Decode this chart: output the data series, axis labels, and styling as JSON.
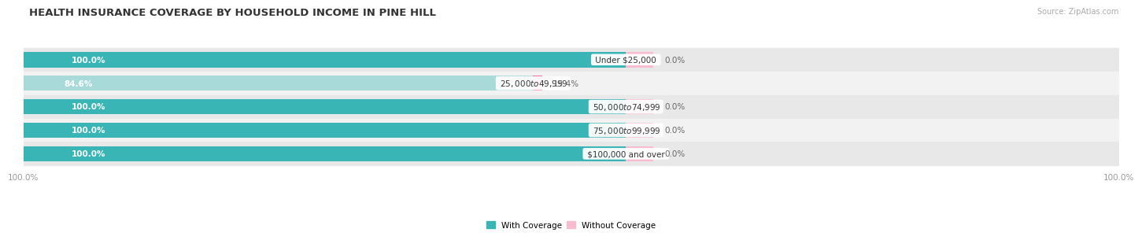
{
  "title": "HEALTH INSURANCE COVERAGE BY HOUSEHOLD INCOME IN PINE HILL",
  "source": "Source: ZipAtlas.com",
  "categories": [
    "Under $25,000",
    "$25,000 to $49,999",
    "$50,000 to $74,999",
    "$75,000 to $99,999",
    "$100,000 and over"
  ],
  "with_coverage": [
    100.0,
    84.6,
    100.0,
    100.0,
    100.0
  ],
  "without_coverage": [
    0.0,
    15.4,
    0.0,
    0.0,
    0.0
  ],
  "color_with": "#3ab5b5",
  "color_with_light": "#a8dada",
  "color_without": "#f06292",
  "color_without_light": "#f8bbd0",
  "title_fontsize": 9.5,
  "label_fontsize": 7.5,
  "tick_fontsize": 7.5,
  "legend_fontsize": 7.5,
  "source_fontsize": 7,
  "x_tick_labels": [
    "100.0%",
    "100.0%"
  ],
  "row_colors": [
    "#e8e8e8",
    "#f2f2f2"
  ],
  "bar_scale": 55.0,
  "pink_scale": 8.0
}
